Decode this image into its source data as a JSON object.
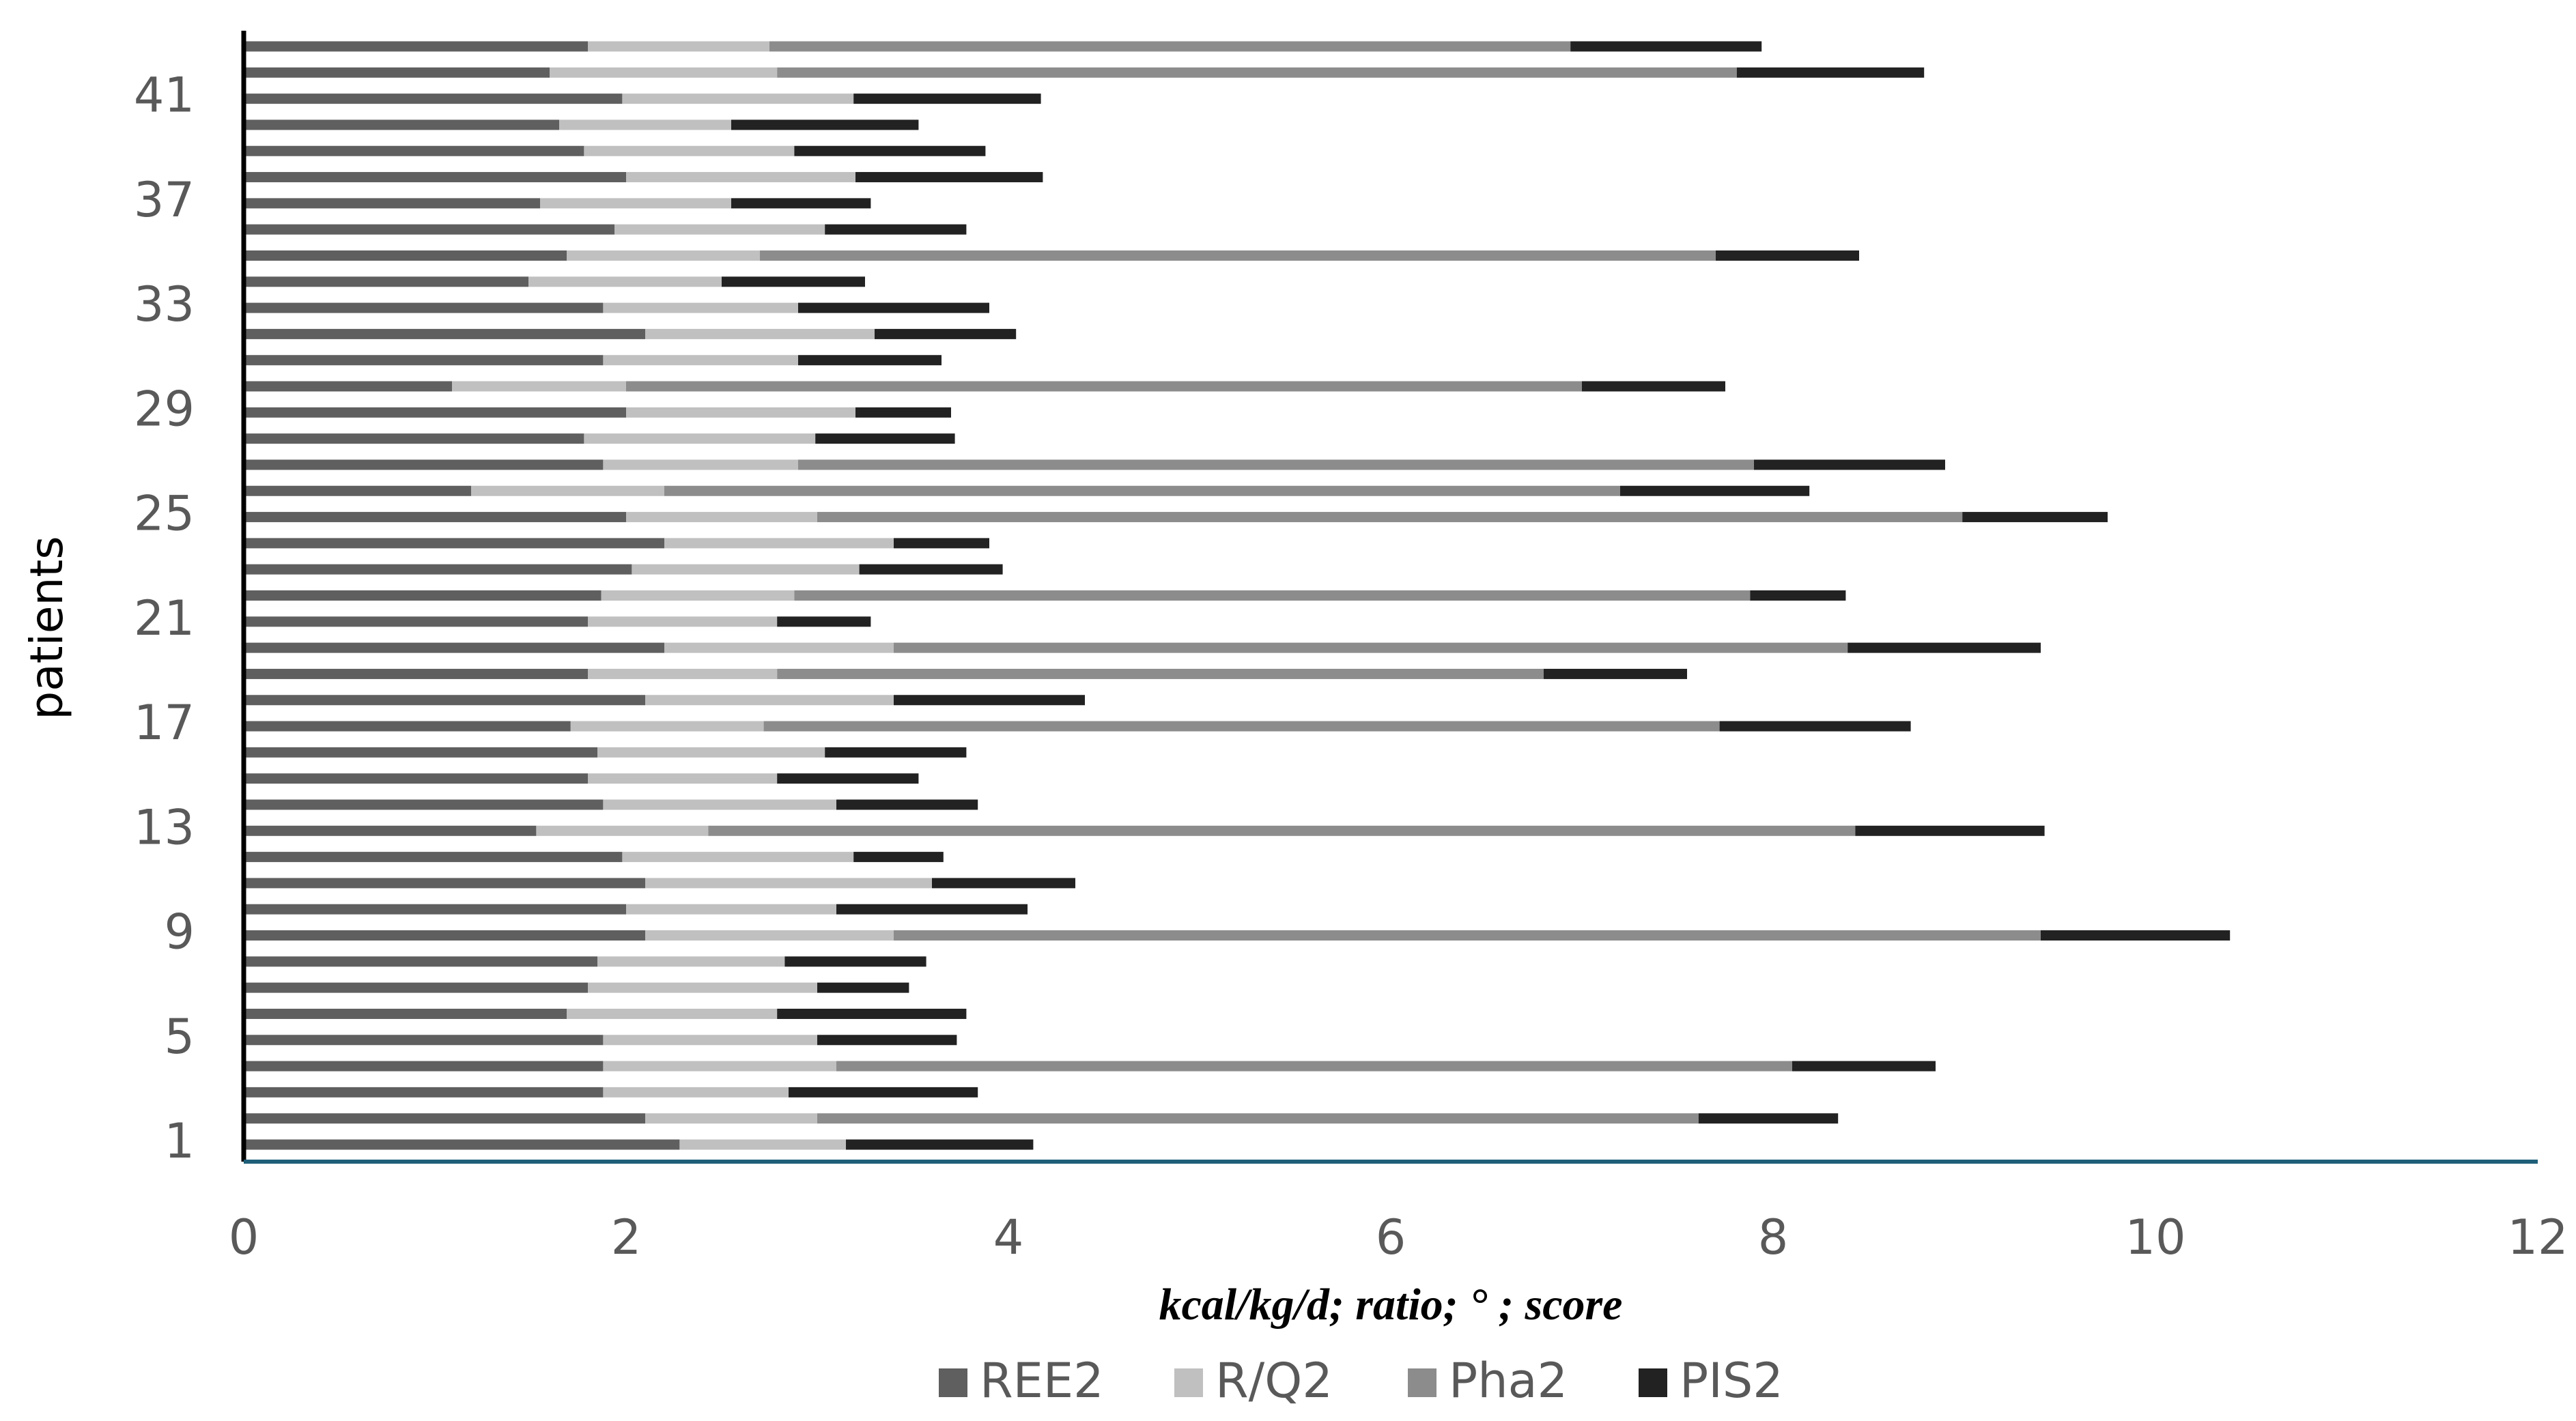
{
  "chart_data": {
    "type": "stacked-bar-horizontal",
    "x_label": "kcal/kg/d; ratio; ° ; score",
    "y_label": "patients",
    "categories": [
      "1",
      null,
      null,
      null,
      "5",
      null,
      null,
      null,
      "9",
      null,
      null,
      null,
      "13",
      null,
      null,
      null,
      "17",
      null,
      null,
      null,
      "21",
      null,
      null,
      null,
      "25",
      null,
      null,
      null,
      "29",
      null,
      null,
      null,
      "33",
      null,
      null,
      null,
      "37",
      null,
      null,
      null,
      "41",
      null,
      null
    ],
    "series": [
      {
        "name": "REE2",
        "color": "#5f5f5f",
        "values": [
          2.28,
          2.1,
          1.88,
          1.88,
          1.88,
          1.69,
          1.8,
          1.85,
          2.1,
          2.0,
          2.1,
          1.98,
          1.53,
          1.88,
          1.8,
          1.85,
          1.71,
          2.1,
          1.8,
          2.2,
          1.8,
          1.87,
          2.03,
          2.2,
          2.0,
          1.19,
          1.88,
          1.78,
          2.0,
          1.09,
          1.88,
          2.1,
          1.88,
          1.49,
          1.69,
          1.94,
          1.55,
          2.0,
          1.78,
          1.65,
          1.98,
          1.6,
          1.8
        ]
      },
      {
        "name": "R/Q2",
        "color": "#c0c0c0",
        "values": [
          0.87,
          0.9,
          0.97,
          1.22,
          1.12,
          1.1,
          1.2,
          0.98,
          1.3,
          1.1,
          1.5,
          1.21,
          0.9,
          1.22,
          0.99,
          1.19,
          1.01,
          1.3,
          0.99,
          1.2,
          0.99,
          1.01,
          1.19,
          1.2,
          1.0,
          1.01,
          1.02,
          1.21,
          1.2,
          0.91,
          1.02,
          1.2,
          1.02,
          1.01,
          1.01,
          1.1,
          1.0,
          1.2,
          1.1,
          0.9,
          1.21,
          1.19,
          0.95
        ]
      },
      {
        "name": "Pha2",
        "color": "#8c8c8c",
        "values": [
          0,
          4.61,
          0,
          5.0,
          0,
          0,
          0,
          0,
          6.0,
          0,
          0,
          0,
          6.0,
          0,
          0,
          0,
          5.0,
          0,
          4.01,
          4.99,
          0,
          5.0,
          0,
          0,
          5.99,
          5.0,
          5.0,
          0,
          0,
          5.0,
          0,
          0,
          0,
          0,
          5.0,
          0,
          0,
          0,
          0,
          0,
          0,
          5.02,
          4.19
        ]
      },
      {
        "name": "PIS2",
        "color": "#222222",
        "values": [
          0.98,
          0.73,
          0.99,
          0.75,
          0.73,
          0.99,
          0.48,
          0.74,
          0.99,
          1.0,
          0.75,
          0.47,
          0.99,
          0.74,
          0.74,
          0.74,
          1.0,
          1.0,
          0.75,
          1.01,
          0.49,
          0.5,
          0.75,
          0.5,
          0.76,
          0.99,
          1.0,
          0.73,
          0.5,
          0.75,
          0.75,
          0.74,
          1.0,
          0.75,
          0.75,
          0.74,
          0.73,
          0.98,
          1.0,
          0.98,
          0.98,
          0.98,
          1.0
        ]
      }
    ],
    "xlim": [
      0,
      12
    ],
    "xticks": [
      0,
      2,
      4,
      6,
      8,
      10,
      12
    ],
    "grid": false,
    "legend": "bottom",
    "baseline_color": "#1f5f7a"
  }
}
